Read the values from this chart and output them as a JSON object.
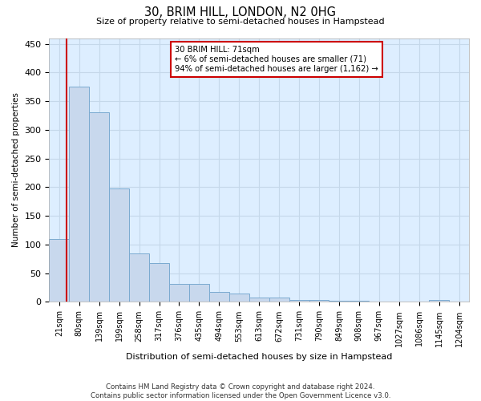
{
  "title": "30, BRIM HILL, LONDON, N2 0HG",
  "subtitle": "Size of property relative to semi-detached houses in Hampstead",
  "xlabel": "Distribution of semi-detached houses by size in Hampstead",
  "ylabel": "Number of semi-detached properties",
  "bar_labels": [
    "21sqm",
    "80sqm",
    "139sqm",
    "199sqm",
    "258sqm",
    "317sqm",
    "376sqm",
    "435sqm",
    "494sqm",
    "553sqm",
    "613sqm",
    "672sqm",
    "731sqm",
    "790sqm",
    "849sqm",
    "908sqm",
    "967sqm",
    "1027sqm",
    "1086sqm",
    "1145sqm",
    "1204sqm"
  ],
  "bar_values": [
    110,
    375,
    330,
    198,
    85,
    68,
    31,
    31,
    18,
    14,
    7,
    7,
    4,
    3,
    2,
    2,
    1,
    0,
    0,
    4,
    0
  ],
  "bar_color": "#c8d8ed",
  "bar_edge_color": "#7aaad0",
  "subject_label": "30 BRIM HILL: 71sqm",
  "annotation_line1": "← 6% of semi-detached houses are smaller (71)",
  "annotation_line2": "94% of semi-detached houses are larger (1,162) →",
  "annotation_box_color": "#ffffff",
  "annotation_box_edge": "#cc0000",
  "subject_line_color": "#cc0000",
  "grid_color": "#c5d8ea",
  "plot_bg_color": "#ddeeff",
  "footer1": "Contains HM Land Registry data © Crown copyright and database right 2024.",
  "footer2": "Contains public sector information licensed under the Open Government Licence v3.0.",
  "ylim": [
    0,
    460
  ],
  "yticks": [
    0,
    50,
    100,
    150,
    200,
    250,
    300,
    350,
    400,
    450
  ],
  "figsize": [
    6.0,
    5.0
  ],
  "dpi": 100
}
